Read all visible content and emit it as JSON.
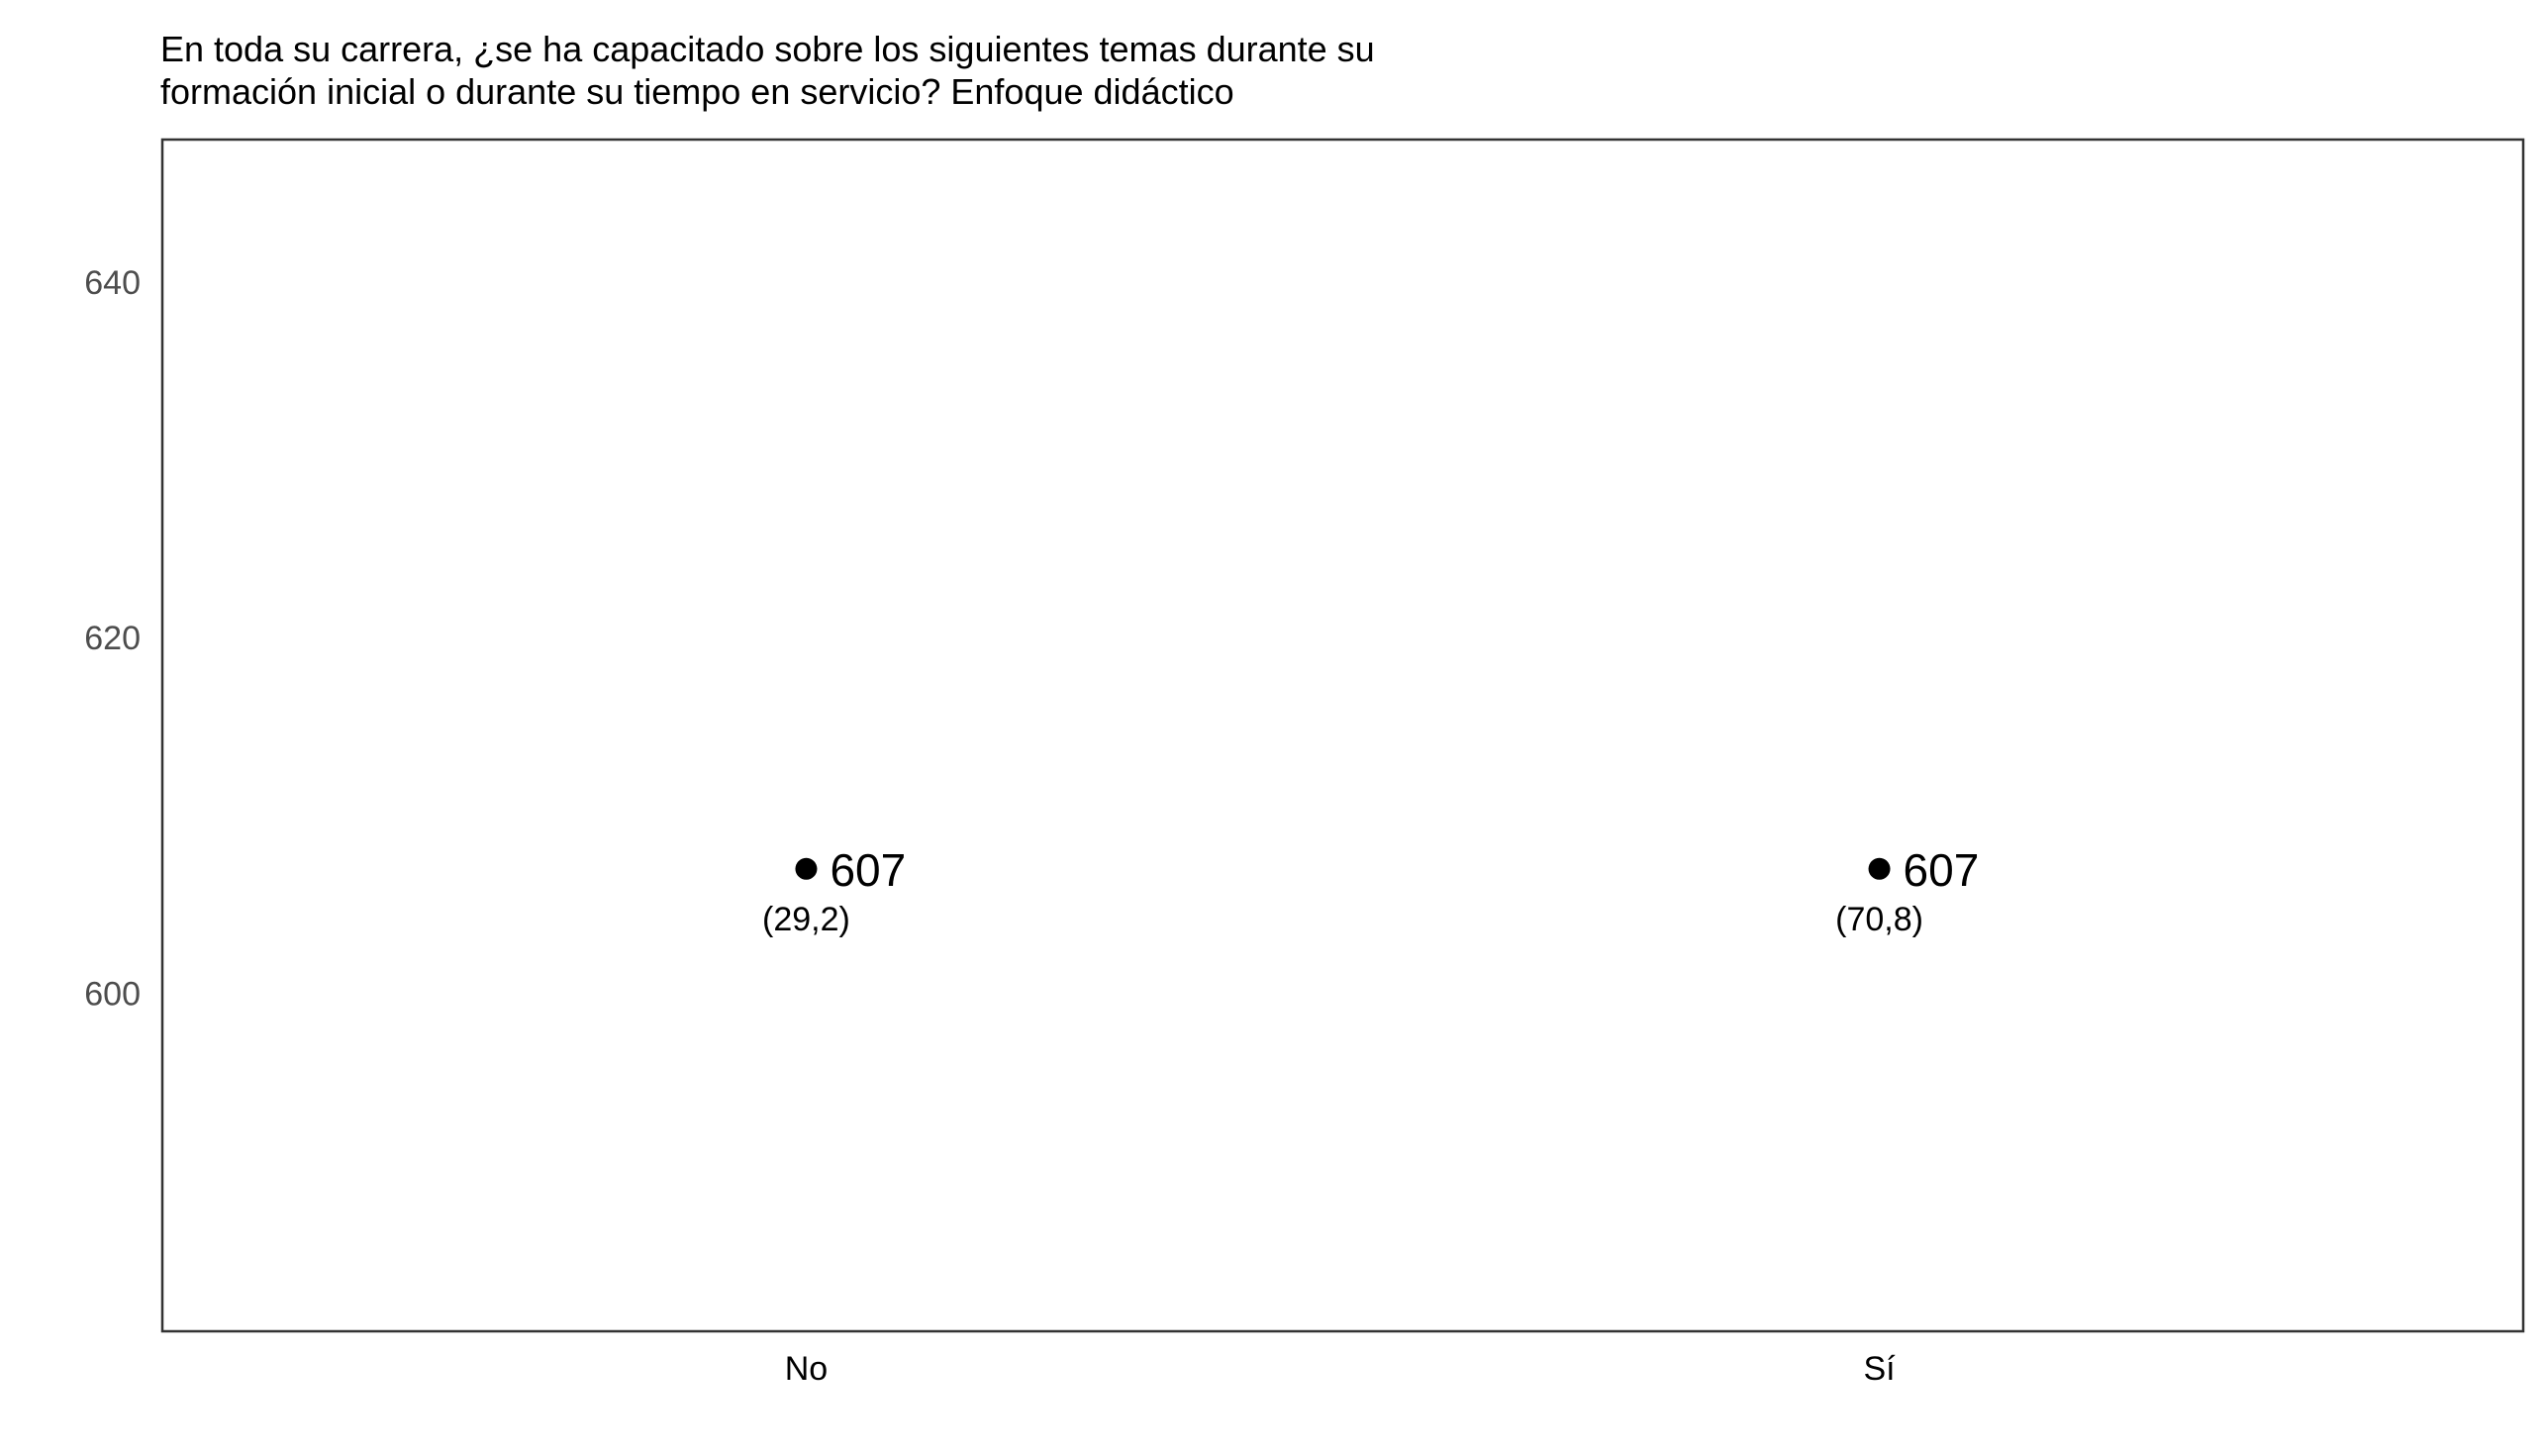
{
  "chart_data": {
    "type": "scatter",
    "title": "En toda su carrera, ¿se ha capacitado sobre los siguientes temas durante su formación inicial o durante su tiempo en servicio? Enfoque didáctico",
    "title_lines": [
      "En toda su carrera, ¿se ha capacitado sobre los siguientes temas durante su",
      "formación inicial o durante su tiempo en servicio? Enfoque didáctico"
    ],
    "categories": [
      "No",
      "Sí"
    ],
    "values": [
      607,
      607
    ],
    "value_labels": [
      "607",
      "607"
    ],
    "percent_labels": [
      "(29,2)",
      "(70,8)"
    ],
    "xlabel": "",
    "ylabel": "",
    "ylim": [
      581,
      648
    ],
    "yticks": [
      600,
      620,
      640
    ],
    "grid": false,
    "point_color": "#000000"
  }
}
